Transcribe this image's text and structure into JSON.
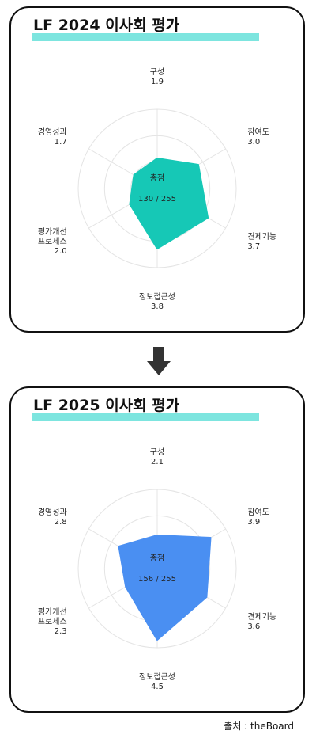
{
  "source": "출처 : theBoard",
  "chart_data": [
    {
      "type": "radar",
      "title": "LF 2024 이사회 평가",
      "categories": [
        "구성",
        "참여도",
        "견제기능",
        "정보접근성",
        "평가개선\n프로세스",
        "경영성과"
      ],
      "values": [
        1.9,
        3.0,
        3.7,
        3.8,
        2.0,
        1.7
      ],
      "value_labels": [
        "1.9",
        "3.0",
        "3.7",
        "3.8",
        "2.0",
        "1.7"
      ],
      "rmax": 5,
      "grid_rings": 3,
      "center_label": "총점",
      "center_value": "130 / 255",
      "fill_color": "#16c8b6"
    },
    {
      "type": "radar",
      "title": "LF 2025 이사회 평가",
      "categories": [
        "구성",
        "참여도",
        "견제기능",
        "정보접근성",
        "평가개선\n프로세스",
        "경영성과"
      ],
      "values": [
        2.1,
        3.9,
        3.6,
        4.5,
        2.3,
        2.8
      ],
      "value_labels": [
        "2.1",
        "3.9",
        "3.6",
        "4.5",
        "2.3",
        "2.8"
      ],
      "rmax": 5,
      "grid_rings": 3,
      "center_label": "총점",
      "center_value": "156 / 255",
      "fill_color": "#4a8ff2"
    }
  ],
  "arrow_icon": "down-arrow-icon"
}
